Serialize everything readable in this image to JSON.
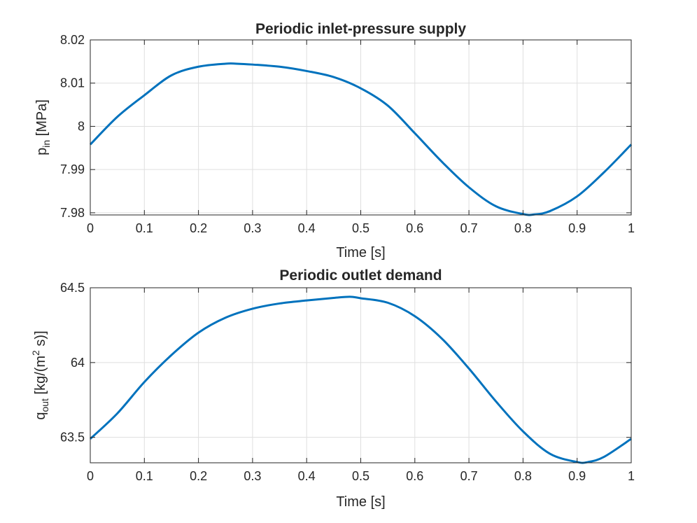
{
  "chart_data": [
    {
      "type": "line",
      "title": "Periodic inlet-pressure supply",
      "xlabel": "Time [s]",
      "ylabel": {
        "base": "p",
        "sub": "in",
        "rest": " [MPa]"
      },
      "xlim": [
        0,
        1
      ],
      "ylim": [
        7.9795,
        8.02
      ],
      "xticks": [
        0,
        0.1,
        0.2,
        0.3,
        0.4,
        0.5,
        0.6,
        0.7,
        0.8,
        0.9,
        1
      ],
      "xticklabels": [
        "0",
        "0.1",
        "0.2",
        "0.3",
        "0.4",
        "0.5",
        "0.6",
        "0.7",
        "0.8",
        "0.9",
        "1"
      ],
      "yticks": [
        7.98,
        7.99,
        8.0,
        8.01,
        8.02
      ],
      "yticklabels": [
        "7.98",
        "7.99",
        "8",
        "8.01",
        "8.02"
      ],
      "grid": true,
      "color": "#0072BD",
      "series": [
        {
          "x": [
            0,
            0.05,
            0.1,
            0.15,
            0.2,
            0.25,
            0.27,
            0.3,
            0.35,
            0.4,
            0.45,
            0.5,
            0.55,
            0.6,
            0.65,
            0.7,
            0.75,
            0.8,
            0.82,
            0.85,
            0.9,
            0.95,
            1.0
          ],
          "y": [
            7.9958,
            8.0022,
            8.0072,
            8.0118,
            8.0138,
            8.0145,
            8.0145,
            8.0143,
            8.0138,
            8.0128,
            8.0114,
            8.0088,
            8.0048,
            7.9984,
            7.9918,
            7.9859,
            7.9815,
            7.9797,
            7.9796,
            7.9804,
            7.9838,
            7.9894,
            7.9958
          ]
        }
      ]
    },
    {
      "type": "line",
      "title": "Periodic outlet demand",
      "xlabel": "Time [s]",
      "ylabel": {
        "base": "q",
        "sub": "out",
        "pre": " [kg/(m",
        "sup": "2",
        "post": " s)]"
      },
      "xlim": [
        0,
        1
      ],
      "ylim": [
        63.33,
        64.5
      ],
      "xticks": [
        0,
        0.1,
        0.2,
        0.3,
        0.4,
        0.5,
        0.6,
        0.7,
        0.8,
        0.9,
        1
      ],
      "xticklabels": [
        "0",
        "0.1",
        "0.2",
        "0.3",
        "0.4",
        "0.5",
        "0.6",
        "0.7",
        "0.8",
        "0.9",
        "1"
      ],
      "yticks": [
        63.5,
        64.0,
        64.5
      ],
      "yticklabels": [
        "63.5",
        "64",
        "64.5"
      ],
      "grid": true,
      "color": "#0072BD",
      "series": [
        {
          "x": [
            0,
            0.05,
            0.1,
            0.15,
            0.2,
            0.25,
            0.3,
            0.35,
            0.4,
            0.45,
            0.48,
            0.5,
            0.55,
            0.6,
            0.65,
            0.7,
            0.75,
            0.8,
            0.85,
            0.9,
            0.92,
            0.95,
            1.0
          ],
          "y": [
            63.49,
            63.66,
            63.87,
            64.05,
            64.2,
            64.3,
            64.36,
            64.395,
            64.415,
            64.432,
            64.44,
            64.43,
            64.4,
            64.31,
            64.16,
            63.96,
            63.74,
            63.54,
            63.39,
            63.335,
            63.335,
            63.37,
            63.49
          ]
        }
      ]
    }
  ]
}
